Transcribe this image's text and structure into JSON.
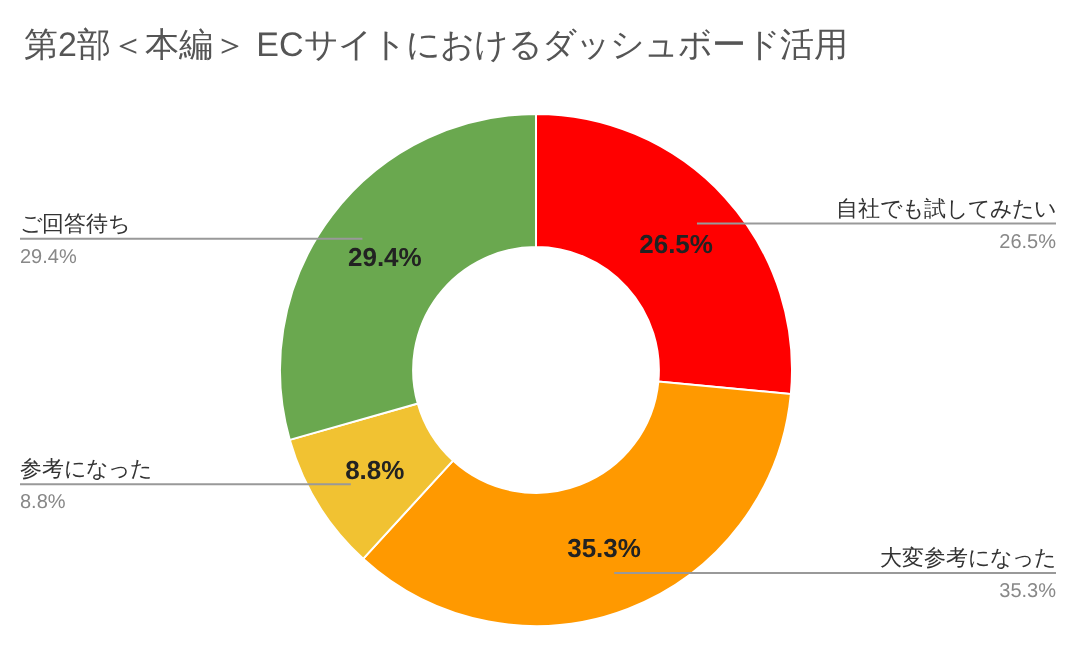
{
  "chart_data": {
    "type": "donut",
    "title": "第2部＜本編＞ ECサイトにおけるダッシュボード活用",
    "categories": [
      "自社でも試してみたい",
      "大変参考になった",
      "参考になった",
      "ご回答待ち"
    ],
    "values": [
      26.5,
      35.3,
      8.8,
      29.4
    ],
    "colors": [
      "#ff0000",
      "#ff9900",
      "#f1c232",
      "#6aa84f"
    ],
    "value_labels": [
      "26.5%",
      "35.3%",
      "8.8%",
      "29.4%"
    ]
  }
}
